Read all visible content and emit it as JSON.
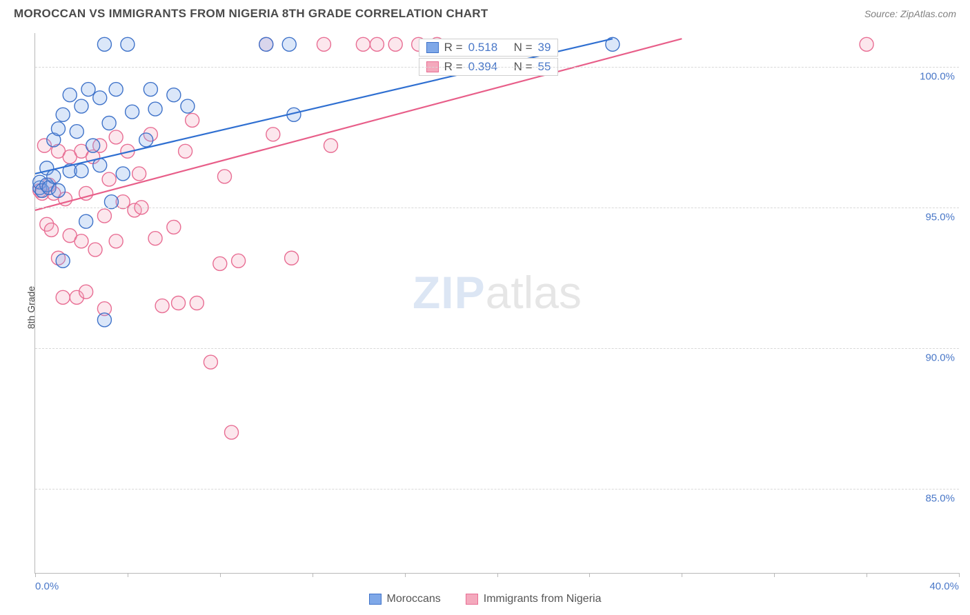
{
  "title": "MOROCCAN VS IMMIGRANTS FROM NIGERIA 8TH GRADE CORRELATION CHART",
  "source": "Source: ZipAtlas.com",
  "ylabel": "8th Grade",
  "watermark": {
    "zip": "ZIP",
    "atlas": "atlas"
  },
  "chart": {
    "type": "scatter",
    "background_color": "#ffffff",
    "grid_color": "#d8d8d8",
    "axis_color": "#b8b8b8",
    "tick_label_color": "#4a78c8",
    "title_color": "#4a4a4a",
    "xlim": [
      0,
      40
    ],
    "ylim": [
      82,
      101.2
    ],
    "xticks": [
      0,
      4,
      8,
      12,
      16,
      20,
      24,
      28,
      32,
      36,
      40
    ],
    "xtick_labels_shown": {
      "0": "0.0%",
      "40": "40.0%"
    },
    "yticks": [
      85,
      90,
      95,
      100
    ],
    "ytick_labels": [
      "85.0%",
      "90.0%",
      "95.0%",
      "100.0%"
    ],
    "marker_radius": 10,
    "marker_fill_opacity": 0.28,
    "marker_stroke_width": 1.4,
    "line_width": 2.2,
    "series": [
      {
        "name": "Moroccans",
        "color_fill": "#7fa8e8",
        "color_stroke": "#3e72c9",
        "line_color": "#2f6fd1",
        "r": "0.518",
        "n": "39",
        "points": [
          [
            0.2,
            95.7
          ],
          [
            0.2,
            95.9
          ],
          [
            0.3,
            95.6
          ],
          [
            0.5,
            95.8
          ],
          [
            0.5,
            96.4
          ],
          [
            0.6,
            95.7
          ],
          [
            0.8,
            96.1
          ],
          [
            0.8,
            97.4
          ],
          [
            1.0,
            95.6
          ],
          [
            1.0,
            97.8
          ],
          [
            1.2,
            93.1
          ],
          [
            1.2,
            98.3
          ],
          [
            1.5,
            96.3
          ],
          [
            1.5,
            99.0
          ],
          [
            1.8,
            97.7
          ],
          [
            2.0,
            98.6
          ],
          [
            2.0,
            96.3
          ],
          [
            2.2,
            94.5
          ],
          [
            2.3,
            99.2
          ],
          [
            2.5,
            97.2
          ],
          [
            2.8,
            98.9
          ],
          [
            2.8,
            96.5
          ],
          [
            3.0,
            91.0
          ],
          [
            3.0,
            100.8
          ],
          [
            3.2,
            98.0
          ],
          [
            3.3,
            95.2
          ],
          [
            3.5,
            99.2
          ],
          [
            3.8,
            96.2
          ],
          [
            4.0,
            100.8
          ],
          [
            4.2,
            98.4
          ],
          [
            4.8,
            97.4
          ],
          [
            5.0,
            99.2
          ],
          [
            5.2,
            98.5
          ],
          [
            6.0,
            99.0
          ],
          [
            6.6,
            98.6
          ],
          [
            10.0,
            100.8
          ],
          [
            11.0,
            100.8
          ],
          [
            11.2,
            98.3
          ],
          [
            25.0,
            100.8
          ]
        ],
        "trend": {
          "x1": 0,
          "y1": 96.2,
          "x2": 25,
          "y2": 101.0
        }
      },
      {
        "name": "Immigrants from Nigeria",
        "color_fill": "#f4a9bd",
        "color_stroke": "#e86d93",
        "line_color": "#e85e89",
        "r": "0.394",
        "n": "55",
        "points": [
          [
            0.2,
            95.6
          ],
          [
            0.3,
            95.5
          ],
          [
            0.4,
            97.2
          ],
          [
            0.5,
            94.4
          ],
          [
            0.6,
            95.8
          ],
          [
            0.7,
            94.2
          ],
          [
            0.8,
            95.5
          ],
          [
            1.0,
            97.0
          ],
          [
            1.0,
            93.2
          ],
          [
            1.2,
            91.8
          ],
          [
            1.3,
            95.3
          ],
          [
            1.5,
            96.8
          ],
          [
            1.5,
            94.0
          ],
          [
            1.8,
            91.8
          ],
          [
            2.0,
            97.0
          ],
          [
            2.0,
            93.8
          ],
          [
            2.2,
            95.5
          ],
          [
            2.2,
            92.0
          ],
          [
            2.5,
            96.8
          ],
          [
            2.6,
            93.5
          ],
          [
            2.8,
            97.2
          ],
          [
            3.0,
            94.7
          ],
          [
            3.0,
            91.4
          ],
          [
            3.2,
            96.0
          ],
          [
            3.5,
            97.5
          ],
          [
            3.5,
            93.8
          ],
          [
            3.8,
            95.2
          ],
          [
            4.0,
            97.0
          ],
          [
            4.3,
            94.9
          ],
          [
            4.5,
            96.2
          ],
          [
            4.6,
            95.0
          ],
          [
            5.0,
            97.6
          ],
          [
            5.2,
            93.9
          ],
          [
            5.5,
            91.5
          ],
          [
            6.0,
            94.3
          ],
          [
            6.2,
            91.6
          ],
          [
            6.5,
            97.0
          ],
          [
            6.8,
            98.1
          ],
          [
            7.0,
            91.6
          ],
          [
            7.6,
            89.5
          ],
          [
            8.0,
            93.0
          ],
          [
            8.2,
            96.1
          ],
          [
            8.5,
            87.0
          ],
          [
            8.8,
            93.1
          ],
          [
            10.0,
            100.8
          ],
          [
            10.3,
            97.6
          ],
          [
            11.1,
            93.2
          ],
          [
            12.5,
            100.8
          ],
          [
            12.8,
            97.2
          ],
          [
            14.2,
            100.8
          ],
          [
            14.8,
            100.8
          ],
          [
            15.6,
            100.8
          ],
          [
            16.6,
            100.8
          ],
          [
            17.4,
            100.8
          ],
          [
            36.0,
            100.8
          ]
        ],
        "trend": {
          "x1": 0,
          "y1": 94.9,
          "x2": 28,
          "y2": 101.0
        }
      }
    ],
    "legend_top_pos": {
      "left_pct": 41.5,
      "top_pct": 1
    },
    "legend_top_labels": {
      "r_prefix": "R  =",
      "n_prefix": "N  ="
    }
  },
  "legend_bottom": [
    {
      "label": "Moroccans",
      "fill": "#7fa8e8",
      "stroke": "#3e72c9"
    },
    {
      "label": "Immigrants from Nigeria",
      "fill": "#f4a9bd",
      "stroke": "#e86d93"
    }
  ]
}
